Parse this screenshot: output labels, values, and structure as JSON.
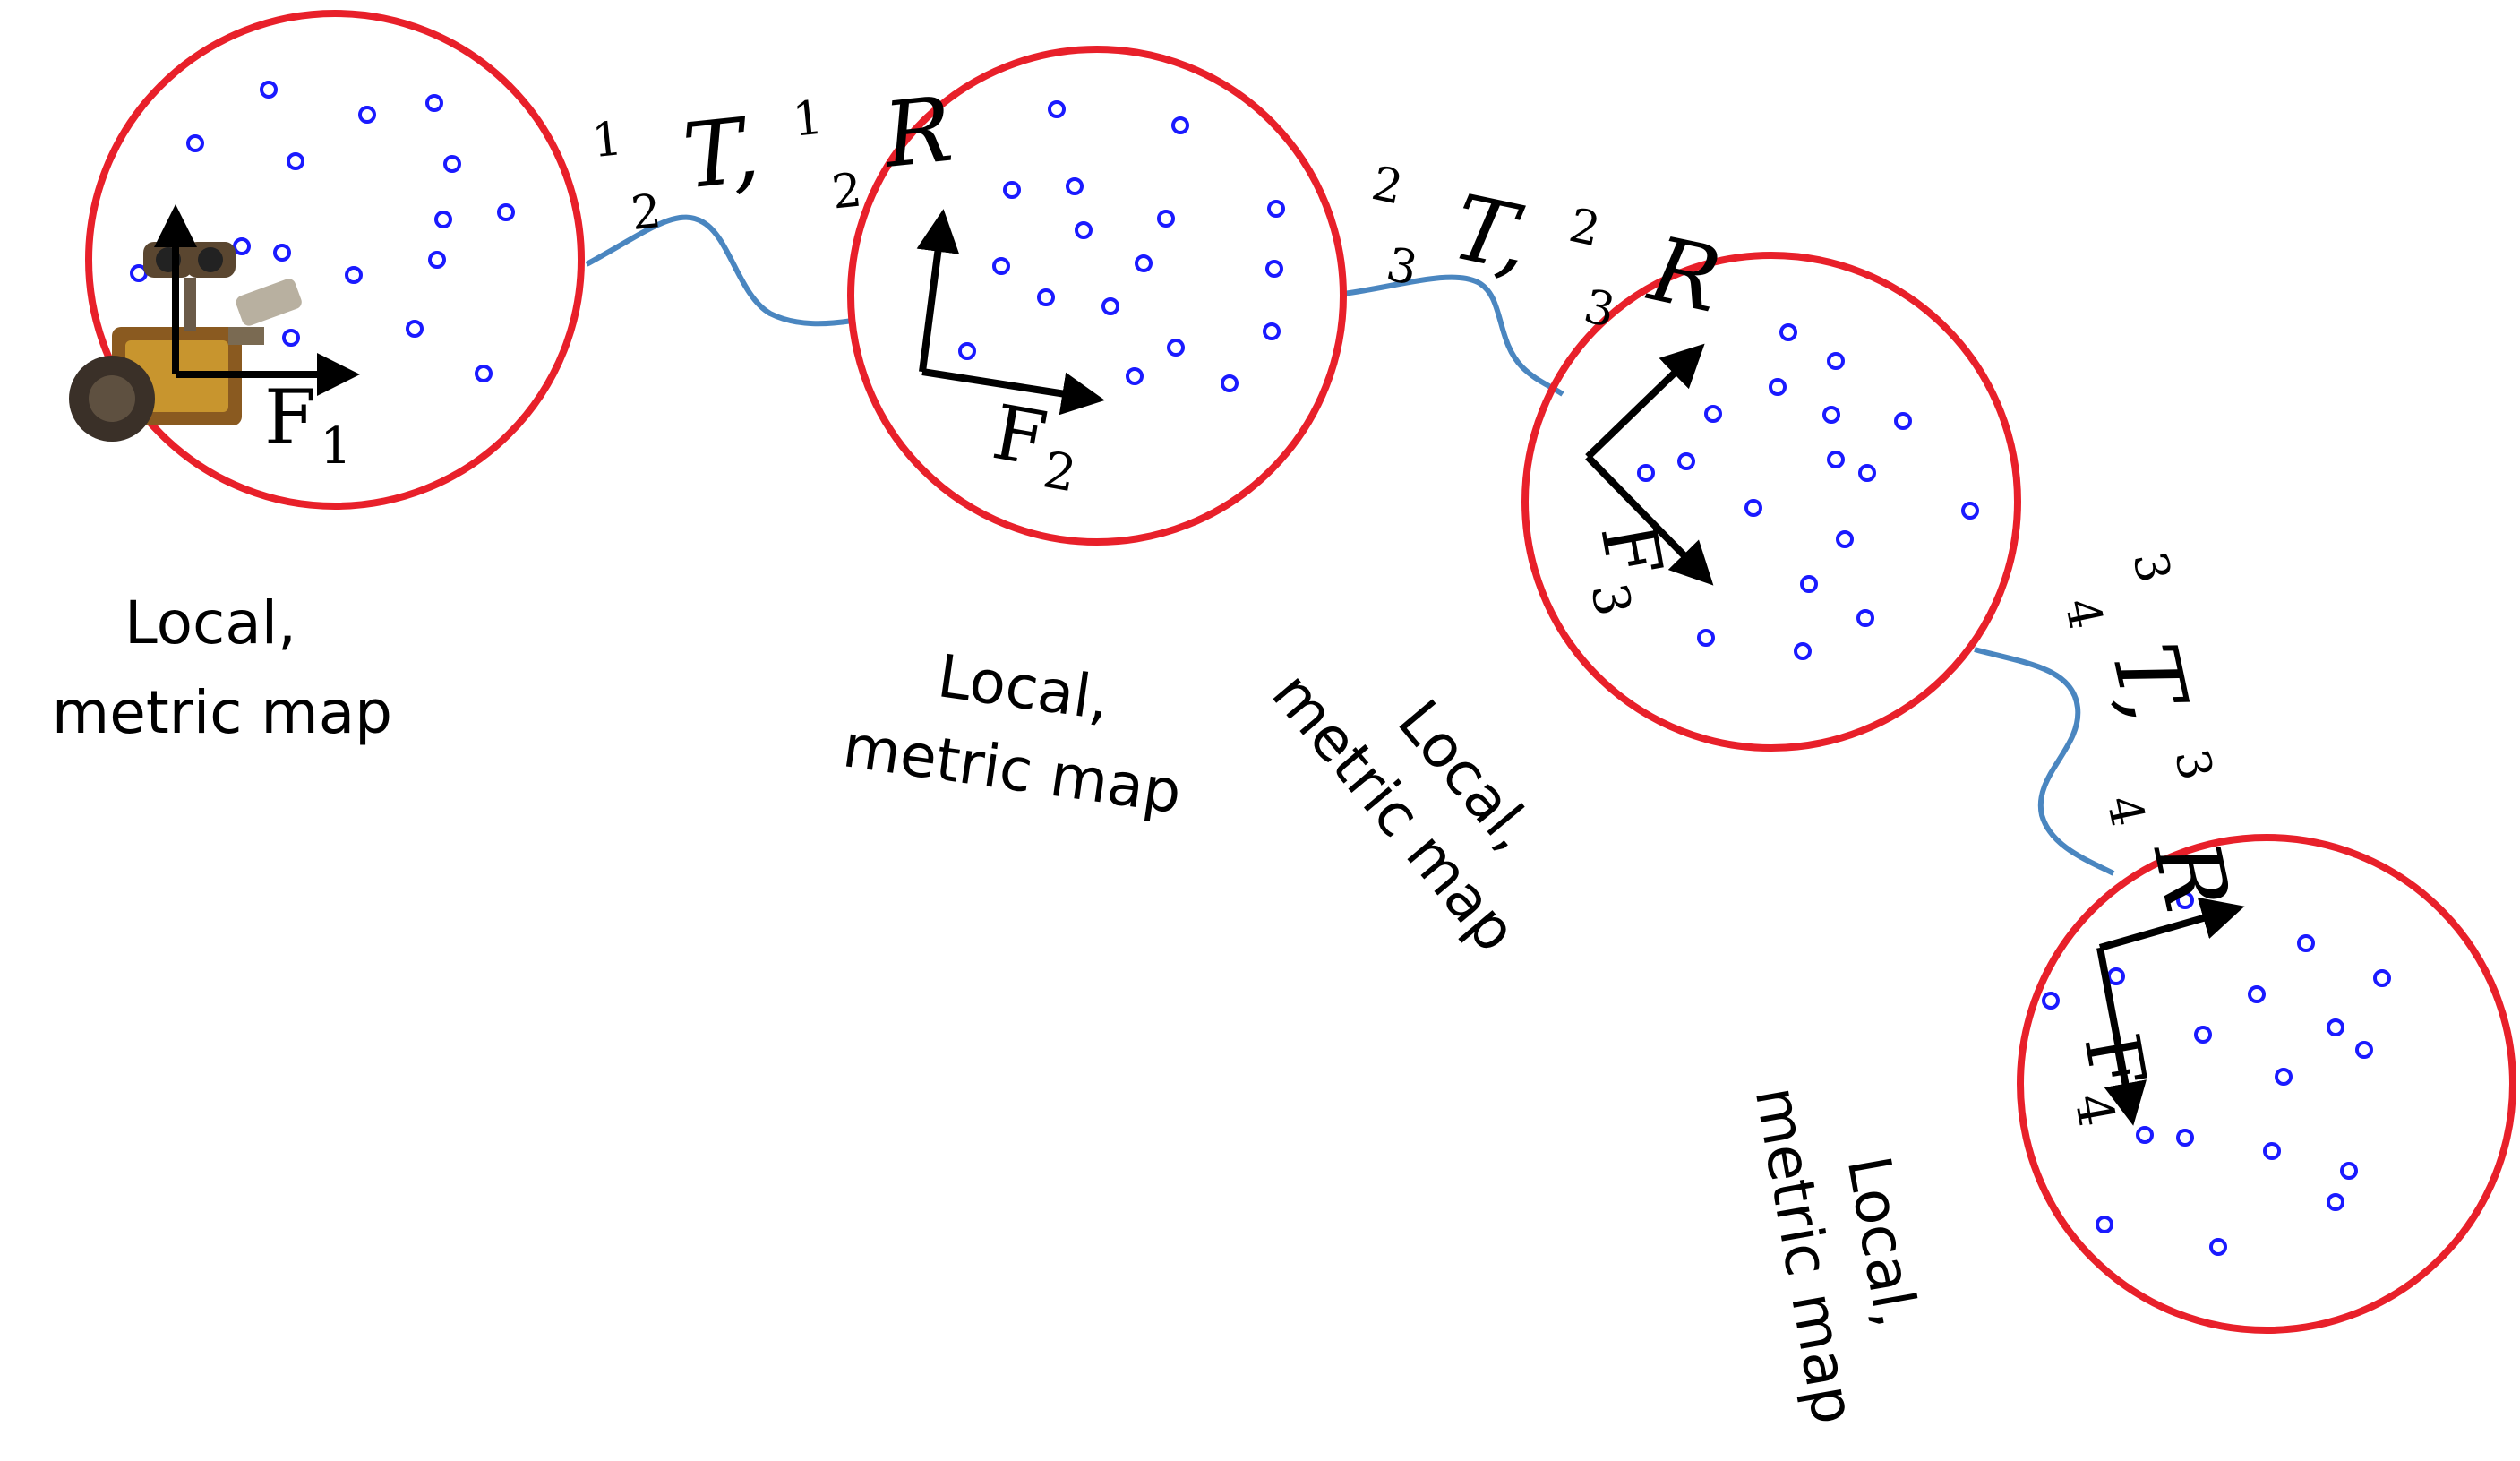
{
  "maps": [
    {
      "id": 1,
      "frame_label": "F",
      "frame_sub": "1",
      "caption_line1": "Local,",
      "caption_line2": "metric map"
    },
    {
      "id": 2,
      "frame_label": "F",
      "frame_sub": "2",
      "caption_line1": "Local,",
      "caption_line2": "metric map"
    },
    {
      "id": 3,
      "frame_label": "F",
      "frame_sub": "3",
      "caption_line1": "Local,",
      "caption_line2": "metric map"
    },
    {
      "id": 4,
      "frame_label": "F",
      "frame_sub": "4",
      "caption_line1": "Local,",
      "caption_line2": "metric map"
    }
  ],
  "transforms": [
    {
      "t_sup": "1",
      "t_sub": "2",
      "t": "T,",
      "r_sup": "1",
      "r_sub": "2",
      "r": "R"
    },
    {
      "t_sup": "2",
      "t_sub": "3",
      "t": "T,",
      "r_sup": "2",
      "r_sub": "3",
      "r": "R"
    },
    {
      "t_sup": "3",
      "t_sub": "4",
      "t": "T,",
      "r_sup": "3",
      "r_sub": "4",
      "r": "R"
    }
  ],
  "colors": {
    "circle": "#e8202a",
    "landmark": "#1a1aff",
    "link": "#4a86c0",
    "axes": "#000000"
  },
  "robot_icon": "robot-icon"
}
